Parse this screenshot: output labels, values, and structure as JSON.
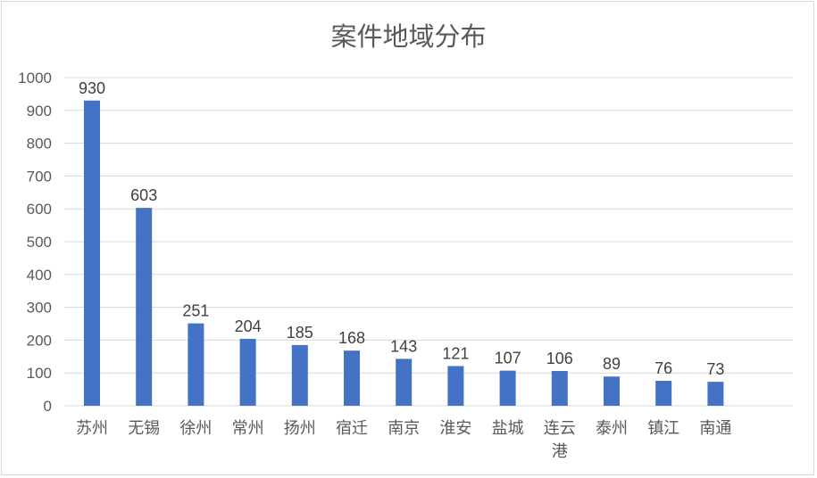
{
  "chart_data": {
    "type": "bar",
    "title": "案件地域分布",
    "xlabel": "",
    "ylabel": "",
    "categories": [
      "苏州",
      "无锡",
      "徐州",
      "常州",
      "扬州",
      "宿迁",
      "南京",
      "淮安",
      "盐城",
      "连云港",
      "泰州",
      "镇江",
      "南通"
    ],
    "values": [
      930,
      603,
      251,
      204,
      185,
      168,
      143,
      121,
      107,
      106,
      89,
      76,
      73
    ],
    "ylim": [
      0,
      1000
    ],
    "yticks": [
      0,
      100,
      200,
      300,
      400,
      500,
      600,
      700,
      800,
      900,
      1000
    ],
    "grid": true,
    "legend": "none",
    "bar_color": "#4472C4",
    "grid_color": "#d9d9d9"
  }
}
